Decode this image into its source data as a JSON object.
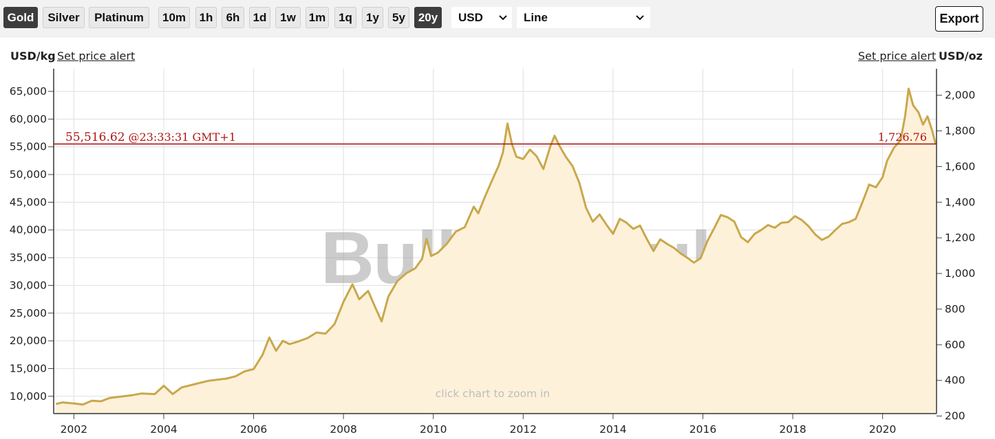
{
  "toolbar": {
    "metals": [
      {
        "label": "Gold",
        "active": true
      },
      {
        "label": "Silver",
        "active": false
      },
      {
        "label": "Platinum",
        "active": false
      }
    ],
    "ranges": [
      {
        "label": "10m",
        "active": false
      },
      {
        "label": "1h",
        "active": false
      },
      {
        "label": "6h",
        "active": false
      },
      {
        "label": "1d",
        "active": false
      },
      {
        "label": "1w",
        "active": false
      },
      {
        "label": "1m",
        "active": false
      },
      {
        "label": "1q",
        "active": false
      },
      {
        "label": "1y",
        "active": false
      },
      {
        "label": "5y",
        "active": false
      },
      {
        "label": "20y",
        "active": true
      }
    ],
    "currency": "USD",
    "chart_style": "Line",
    "export_label": "Export"
  },
  "header": {
    "left_unit": "USD/kg",
    "left_alert": "Set price alert",
    "right_alert": "Set price alert",
    "right_unit": "USD/oz"
  },
  "watermark": "BullionVault",
  "hint": "click chart to zoom in",
  "current_price": {
    "per_kg": "55,516.62",
    "time": "@23:33:31 GMT+1",
    "per_oz": "1,726.76",
    "color": "#b01515"
  },
  "colors": {
    "line": "#c9a84c",
    "fill": "#fdf1da",
    "grid": "#e3e3e3",
    "price_line": "#b01515"
  },
  "chart_data": {
    "type": "area",
    "left_axis": {
      "ticks": [
        "10,000",
        "15,000",
        "20,000",
        "25,000",
        "30,000",
        "35,000",
        "40,000",
        "45,000",
        "50,000",
        "55,000",
        "60,000",
        "65,000"
      ],
      "unit": "USD/kg"
    },
    "right_axis": {
      "ticks": [
        "200",
        "400",
        "600",
        "800",
        "1,000",
        "1,200",
        "1,400",
        "1,600",
        "1,800",
        "2,000"
      ],
      "unit": "USD/oz"
    },
    "x_ticks": [
      "2002",
      "2004",
      "2006",
      "2008",
      "2010",
      "2012",
      "2014",
      "2016",
      "2018",
      "2020"
    ],
    "xlim": [
      2001.55,
      2021.2
    ],
    "ylim_kg": [
      7000,
      68000
    ],
    "grid": true,
    "series": [
      {
        "values": [
          [
            2001.6,
            8600
          ],
          [
            2001.75,
            8900
          ],
          [
            2002.0,
            8700
          ],
          [
            2002.2,
            8500
          ],
          [
            2002.4,
            9200
          ],
          [
            2002.6,
            9100
          ],
          [
            2002.8,
            9700
          ],
          [
            2003.0,
            9900
          ],
          [
            2003.3,
            10200
          ],
          [
            2003.5,
            10500
          ],
          [
            2003.8,
            10400
          ],
          [
            2004.0,
            11900
          ],
          [
            2004.2,
            10400
          ],
          [
            2004.4,
            11600
          ],
          [
            2004.7,
            12200
          ],
          [
            2005.0,
            12800
          ],
          [
            2005.2,
            13000
          ],
          [
            2005.4,
            13200
          ],
          [
            2005.6,
            13600
          ],
          [
            2005.8,
            14500
          ],
          [
            2006.0,
            14900
          ],
          [
            2006.2,
            17500
          ],
          [
            2006.35,
            20600
          ],
          [
            2006.5,
            18200
          ],
          [
            2006.65,
            20000
          ],
          [
            2006.8,
            19400
          ],
          [
            2007.0,
            19900
          ],
          [
            2007.2,
            20500
          ],
          [
            2007.4,
            21500
          ],
          [
            2007.6,
            21300
          ],
          [
            2007.8,
            23000
          ],
          [
            2008.0,
            27000
          ],
          [
            2008.2,
            30200
          ],
          [
            2008.35,
            27500
          ],
          [
            2008.55,
            29000
          ],
          [
            2008.7,
            26200
          ],
          [
            2008.85,
            23500
          ],
          [
            2009.0,
            28000
          ],
          [
            2009.2,
            30800
          ],
          [
            2009.4,
            32200
          ],
          [
            2009.6,
            33100
          ],
          [
            2009.75,
            34800
          ],
          [
            2009.85,
            38400
          ],
          [
            2009.95,
            35300
          ],
          [
            2010.1,
            35900
          ],
          [
            2010.3,
            37500
          ],
          [
            2010.5,
            39700
          ],
          [
            2010.7,
            40500
          ],
          [
            2010.9,
            44200
          ],
          [
            2011.0,
            43000
          ],
          [
            2011.15,
            46000
          ],
          [
            2011.3,
            48800
          ],
          [
            2011.45,
            51500
          ],
          [
            2011.55,
            54000
          ],
          [
            2011.65,
            59200
          ],
          [
            2011.75,
            55500
          ],
          [
            2011.85,
            53200
          ],
          [
            2012.0,
            52800
          ],
          [
            2012.15,
            54500
          ],
          [
            2012.3,
            53300
          ],
          [
            2012.45,
            51000
          ],
          [
            2012.6,
            55000
          ],
          [
            2012.7,
            57000
          ],
          [
            2012.8,
            55300
          ],
          [
            2012.95,
            53200
          ],
          [
            2013.1,
            51500
          ],
          [
            2013.25,
            48500
          ],
          [
            2013.4,
            44000
          ],
          [
            2013.55,
            41500
          ],
          [
            2013.7,
            42800
          ],
          [
            2013.85,
            41000
          ],
          [
            2014.0,
            39300
          ],
          [
            2014.15,
            42000
          ],
          [
            2014.3,
            41300
          ],
          [
            2014.45,
            40200
          ],
          [
            2014.6,
            40800
          ],
          [
            2014.75,
            38400
          ],
          [
            2014.9,
            36200
          ],
          [
            2015.05,
            38300
          ],
          [
            2015.2,
            37500
          ],
          [
            2015.35,
            36800
          ],
          [
            2015.5,
            35800
          ],
          [
            2015.65,
            35000
          ],
          [
            2015.8,
            34100
          ],
          [
            2015.95,
            34900
          ],
          [
            2016.1,
            38000
          ],
          [
            2016.25,
            40300
          ],
          [
            2016.4,
            42700
          ],
          [
            2016.55,
            42300
          ],
          [
            2016.7,
            41500
          ],
          [
            2016.85,
            38700
          ],
          [
            2017.0,
            37800
          ],
          [
            2017.15,
            39300
          ],
          [
            2017.3,
            40000
          ],
          [
            2017.45,
            40900
          ],
          [
            2017.6,
            40400
          ],
          [
            2017.75,
            41300
          ],
          [
            2017.9,
            41400
          ],
          [
            2018.05,
            42500
          ],
          [
            2018.2,
            41800
          ],
          [
            2018.35,
            40700
          ],
          [
            2018.5,
            39200
          ],
          [
            2018.65,
            38200
          ],
          [
            2018.8,
            38800
          ],
          [
            2018.95,
            40000
          ],
          [
            2019.1,
            41100
          ],
          [
            2019.25,
            41400
          ],
          [
            2019.4,
            42000
          ],
          [
            2019.55,
            45000
          ],
          [
            2019.7,
            48200
          ],
          [
            2019.85,
            47700
          ],
          [
            2020.0,
            49500
          ],
          [
            2020.1,
            52500
          ],
          [
            2020.25,
            54800
          ],
          [
            2020.4,
            56200
          ],
          [
            2020.5,
            60500
          ],
          [
            2020.58,
            65500
          ],
          [
            2020.68,
            62500
          ],
          [
            2020.8,
            61200
          ],
          [
            2020.9,
            59000
          ],
          [
            2021.0,
            60500
          ],
          [
            2021.1,
            58000
          ],
          [
            2021.18,
            55516.62
          ]
        ]
      }
    ]
  }
}
